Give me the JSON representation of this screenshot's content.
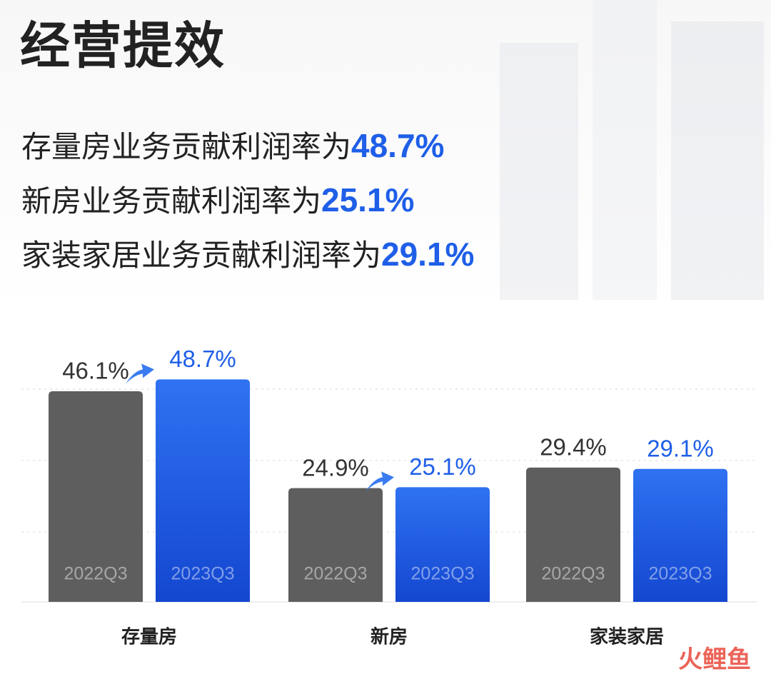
{
  "title": "经营提效",
  "headlines": [
    {
      "text": "存量房业务贡献利润率为",
      "highlight": "48.7%"
    },
    {
      "text": "新房业务贡献利润率为",
      "highlight": "25.1%"
    },
    {
      "text": "家装家居业务贡献利润率为",
      "highlight": "29.1%"
    }
  ],
  "chart_data": {
    "type": "bar",
    "categories": [
      "存量房",
      "新房",
      "家装家居"
    ],
    "series": [
      {
        "name": "2022Q3",
        "color": "#5e5e5e",
        "values": [
          46.1,
          24.9,
          29.4
        ],
        "value_labels": [
          "46.1%",
          "24.9%",
          "29.4%"
        ]
      },
      {
        "name": "2023Q3",
        "color": "#1f5fe8",
        "values": [
          48.7,
          25.1,
          29.1
        ],
        "value_labels": [
          "48.7%",
          "25.1%",
          "29.1%"
        ]
      }
    ]
  },
  "watermark": "火鲤鱼"
}
